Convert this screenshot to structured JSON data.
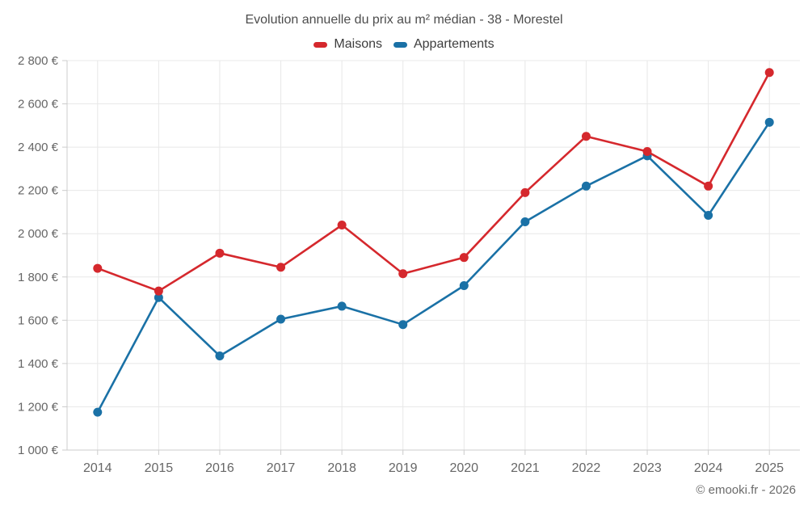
{
  "footer": {
    "credit": "© emooki.fr - 2026"
  },
  "chart_data": {
    "type": "line",
    "title": "Evolution annuelle du prix au m² médian - 38 - Morestel",
    "categories": [
      "2014",
      "2015",
      "2016",
      "2017",
      "2018",
      "2019",
      "2020",
      "2021",
      "2022",
      "2023",
      "2024",
      "2025"
    ],
    "series": [
      {
        "name": "Maisons",
        "color": "#d5282d",
        "values": [
          1840,
          1735,
          1910,
          1845,
          2040,
          1815,
          1890,
          2190,
          2450,
          2380,
          2220,
          2745
        ]
      },
      {
        "name": "Appartements",
        "color": "#1a71a6",
        "values": [
          1175,
          1705,
          1435,
          1605,
          1665,
          1580,
          1760,
          2055,
          2220,
          2360,
          2085,
          2515
        ]
      }
    ],
    "xlabel": "",
    "ylabel": "",
    "ylim": [
      1000,
      2800
    ],
    "ytick_step": 200,
    "ytick_suffix": " €",
    "grid": true,
    "legend_position": "top",
    "marker": "circle",
    "colors": {
      "grid": "#e8e8e8",
      "axis": "#cccccc",
      "tick_label": "#666666"
    }
  }
}
